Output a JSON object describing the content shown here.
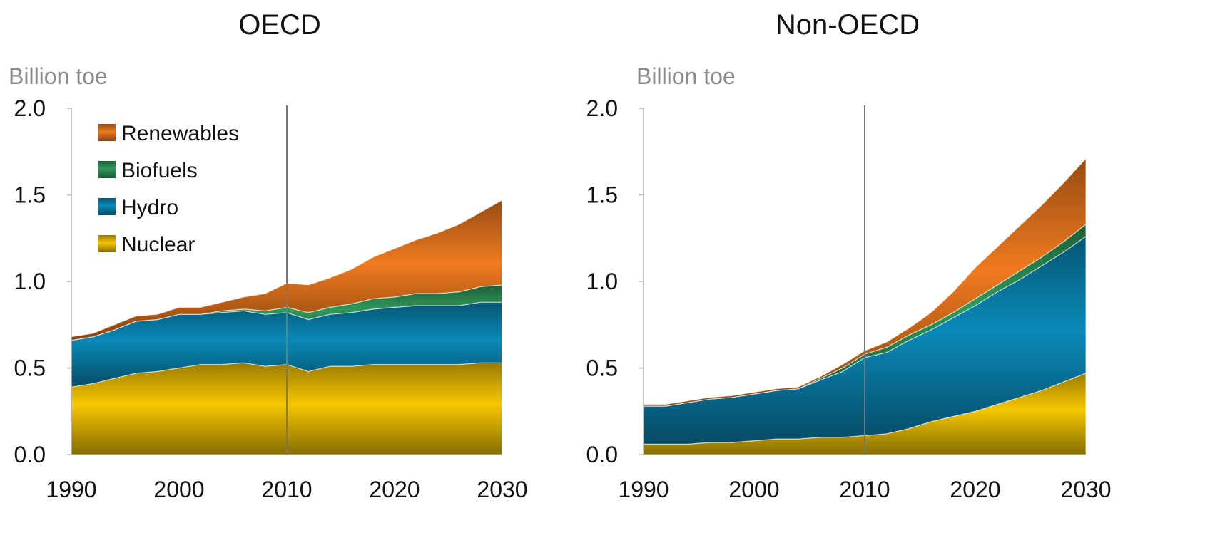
{
  "colors": {
    "Nuclear": "#f6c600",
    "Hydro": "#0a89b8",
    "Biofuels": "#2f9a5a",
    "Renewables": "#f07a1f",
    "divider": "#777777",
    "axis": "#b5b5b5"
  },
  "chart_data": [
    {
      "type": "area",
      "stacked": true,
      "title": "OECD",
      "ylabel": "Billion toe",
      "xlim": [
        1990,
        2030
      ],
      "ylim": [
        0,
        2.0
      ],
      "xticks": [
        "1990",
        "2000",
        "2010",
        "2020",
        "2030"
      ],
      "yticks": [
        "0.0",
        "0.5",
        "1.0",
        "1.5",
        "2.0"
      ],
      "divider_x": 2010,
      "legend": {
        "placement": "top-left",
        "entries": [
          "Renewables",
          "Biofuels",
          "Hydro",
          "Nuclear"
        ]
      },
      "x": [
        1990,
        1992,
        1994,
        1996,
        1998,
        2000,
        2002,
        2004,
        2006,
        2008,
        2010,
        2012,
        2014,
        2016,
        2018,
        2020,
        2022,
        2024,
        2026,
        2028,
        2030
      ],
      "series": [
        {
          "name": "Nuclear",
          "values": [
            0.39,
            0.41,
            0.44,
            0.47,
            0.48,
            0.5,
            0.52,
            0.52,
            0.53,
            0.51,
            0.52,
            0.48,
            0.51,
            0.51,
            0.52,
            0.52,
            0.52,
            0.52,
            0.52,
            0.53,
            0.53
          ]
        },
        {
          "name": "Hydro",
          "values": [
            0.27,
            0.27,
            0.28,
            0.3,
            0.3,
            0.31,
            0.29,
            0.3,
            0.3,
            0.3,
            0.3,
            0.3,
            0.3,
            0.31,
            0.32,
            0.33,
            0.34,
            0.34,
            0.34,
            0.35,
            0.35
          ]
        },
        {
          "name": "Biofuels",
          "values": [
            0.0,
            0.0,
            0.0,
            0.0,
            0.0,
            0.0,
            0.0,
            0.01,
            0.01,
            0.02,
            0.03,
            0.04,
            0.04,
            0.05,
            0.06,
            0.06,
            0.07,
            0.07,
            0.08,
            0.09,
            0.1
          ]
        },
        {
          "name": "Renewables",
          "values": [
            0.02,
            0.02,
            0.03,
            0.03,
            0.03,
            0.04,
            0.04,
            0.05,
            0.07,
            0.1,
            0.14,
            0.16,
            0.17,
            0.2,
            0.24,
            0.28,
            0.31,
            0.35,
            0.39,
            0.43,
            0.49
          ]
        }
      ]
    },
    {
      "type": "area",
      "stacked": true,
      "title": "Non-OECD",
      "ylabel": "Billion toe",
      "xlim": [
        1990,
        2030
      ],
      "ylim": [
        0,
        2.0
      ],
      "xticks": [
        "1990",
        "2000",
        "2010",
        "2020",
        "2030"
      ],
      "yticks": [
        "0.0",
        "0.5",
        "1.0",
        "1.5",
        "2.0"
      ],
      "divider_x": 2010,
      "x": [
        1990,
        1992,
        1994,
        1996,
        1998,
        2000,
        2002,
        2004,
        2006,
        2008,
        2010,
        2012,
        2014,
        2016,
        2018,
        2020,
        2022,
        2024,
        2026,
        2028,
        2030
      ],
      "series": [
        {
          "name": "Nuclear",
          "values": [
            0.06,
            0.06,
            0.06,
            0.07,
            0.07,
            0.08,
            0.09,
            0.09,
            0.1,
            0.1,
            0.11,
            0.12,
            0.15,
            0.19,
            0.22,
            0.25,
            0.29,
            0.33,
            0.37,
            0.42,
            0.47
          ]
        },
        {
          "name": "Hydro",
          "values": [
            0.22,
            0.22,
            0.24,
            0.25,
            0.26,
            0.27,
            0.28,
            0.29,
            0.33,
            0.38,
            0.45,
            0.47,
            0.51,
            0.53,
            0.57,
            0.61,
            0.65,
            0.68,
            0.72,
            0.75,
            0.79
          ]
        },
        {
          "name": "Biofuels",
          "values": [
            0.0,
            0.0,
            0.0,
            0.0,
            0.0,
            0.0,
            0.0,
            0.0,
            0.01,
            0.02,
            0.02,
            0.03,
            0.03,
            0.03,
            0.03,
            0.04,
            0.04,
            0.05,
            0.05,
            0.06,
            0.07
          ]
        },
        {
          "name": "Renewables",
          "values": [
            0.01,
            0.01,
            0.01,
            0.01,
            0.01,
            0.01,
            0.01,
            0.01,
            0.01,
            0.02,
            0.02,
            0.03,
            0.04,
            0.07,
            0.12,
            0.18,
            0.22,
            0.26,
            0.3,
            0.34,
            0.38
          ]
        }
      ]
    }
  ]
}
